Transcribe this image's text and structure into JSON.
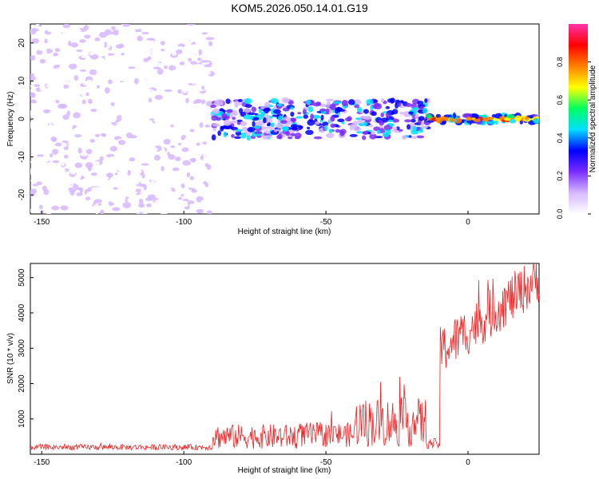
{
  "page_title": "KOM5.2026.050.14.01.G19",
  "chart_data": [
    {
      "type": "heatmap",
      "title": "KOM5.2026.050.14.01.G19",
      "xlabel": "Height of straight line (km)",
      "ylabel": "Frequency (Hz)",
      "xlim": [
        -154,
        25
      ],
      "ylim": [
        -25,
        25
      ],
      "xticks": [
        -150,
        -100,
        -50,
        0
      ],
      "yticks": [
        -20,
        -10,
        0,
        10,
        20
      ],
      "colorbar": {
        "label": "Normalized spectral amplitude",
        "range": [
          0,
          1
        ],
        "ticks": [
          0.0,
          0.2,
          0.4,
          0.6,
          0.8
        ],
        "tick_labels": [
          "0.0",
          "0.2",
          "0.4",
          "0.6",
          "0.8"
        ],
        "colors": [
          "#ffffff",
          "#d6b8ff",
          "#7a2cff",
          "#0000ff",
          "#00e0ff",
          "#00ff60",
          "#ffff00",
          "#ff8000",
          "#ff0000",
          "#ff33aa"
        ]
      },
      "regions": [
        {
          "name": "noise",
          "x_range": [
            -154,
            -90
          ],
          "freq_range": [
            -25,
            25
          ],
          "amplitude": 0.08
        },
        {
          "name": "emerging signal",
          "x_range": [
            -90,
            -14
          ],
          "freq_center": 0,
          "freq_halfwidth": 5,
          "amplitude": 0.3
        },
        {
          "name": "strong carrier",
          "x_range": [
            -14,
            25
          ],
          "freq_center": 0,
          "freq_halfwidth": 1,
          "amplitude": 0.95
        }
      ]
    },
    {
      "type": "line",
      "xlabel": "Height of straight line (km)",
      "ylabel": "SNR (10 * v/v)",
      "xlim": [
        -154,
        25
      ],
      "ylim": [
        0,
        5400
      ],
      "xticks": [
        -150,
        -100,
        -50,
        0
      ],
      "yticks": [
        1000,
        2000,
        3000,
        4000,
        5000
      ],
      "color": "#ee2222",
      "series": [
        {
          "name": "SNR",
          "x_start": -154,
          "x_end": 25,
          "x_step": 0.25,
          "segments": [
            {
              "x_range": [
                -154,
                -90
              ],
              "level": 200,
              "noise": 80
            },
            {
              "x_range": [
                -90,
                -60
              ],
              "level": 500,
              "noise": 350
            },
            {
              "x_range": [
                -60,
                -40
              ],
              "level": 550,
              "noise": 350
            },
            {
              "x_range": [
                -40,
                -15
              ],
              "level": 900,
              "noise": 700
            },
            {
              "x_range": [
                -15,
                -10
              ],
              "level": 300,
              "noise": 150
            },
            {
              "x_range": [
                -10,
                25
              ],
              "level": 3800,
              "noise": 700
            }
          ]
        }
      ]
    }
  ]
}
